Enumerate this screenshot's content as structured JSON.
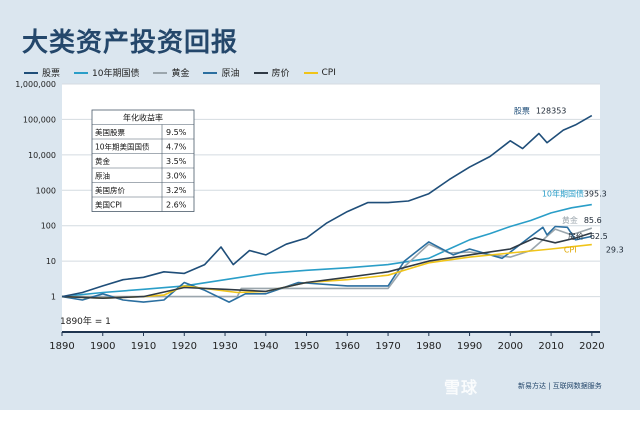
{
  "title": "大类资产投资回报",
  "colors": {
    "band": "#dbe6ef",
    "plot_bg": "#ffffff",
    "text": "#24476b"
  },
  "legend": [
    {
      "name": "股票",
      "color": "#1f4e79"
    },
    {
      "name": "10年期国债",
      "color": "#2a9ec8"
    },
    {
      "name": "黄金",
      "color": "#9ba6ad"
    },
    {
      "name": "原油",
      "color": "#2b6fa0"
    },
    {
      "name": "房价",
      "color": "#2f3a45"
    },
    {
      "name": "CPI",
      "color": "#f0c419"
    }
  ],
  "chart_data": {
    "type": "line",
    "yscale": "log",
    "xlim": [
      1890,
      2022
    ],
    "ylim": [
      0.1,
      1000000
    ],
    "x_ticks": [
      "1890",
      "1900",
      "1910",
      "1920",
      "1930",
      "1940",
      "1950",
      "1960",
      "1970",
      "1980",
      "1990",
      "2000",
      "2010",
      "2020"
    ],
    "y_ticks": [
      "1",
      "10",
      "100",
      "1000",
      "10,000",
      "100,000",
      "1,000,000"
    ],
    "grid": true,
    "legend_position": "top",
    "annotation": "1890年 = 1",
    "series": [
      {
        "name": "股票",
        "color": "#1f4e79",
        "end_label": "128353",
        "points": [
          [
            1890,
            1
          ],
          [
            1895,
            1.3
          ],
          [
            1900,
            2
          ],
          [
            1905,
            3
          ],
          [
            1910,
            3.5
          ],
          [
            1915,
            5
          ],
          [
            1920,
            4.5
          ],
          [
            1925,
            8
          ],
          [
            1929,
            25
          ],
          [
            1932,
            8
          ],
          [
            1936,
            20
          ],
          [
            1940,
            15
          ],
          [
            1945,
            30
          ],
          [
            1950,
            45
          ],
          [
            1955,
            120
          ],
          [
            1960,
            250
          ],
          [
            1965,
            450
          ],
          [
            1970,
            450
          ],
          [
            1975,
            500
          ],
          [
            1980,
            800
          ],
          [
            1985,
            2000
          ],
          [
            1990,
            4500
          ],
          [
            1995,
            9000
          ],
          [
            2000,
            25000
          ],
          [
            2003,
            15000
          ],
          [
            2007,
            40000
          ],
          [
            2009,
            22000
          ],
          [
            2013,
            50000
          ],
          [
            2016,
            70000
          ],
          [
            2020,
            128353
          ]
        ]
      },
      {
        "name": "10年期国债",
        "color": "#2a9ec8",
        "end_label": "395.3",
        "points": [
          [
            1890,
            1
          ],
          [
            1900,
            1.3
          ],
          [
            1910,
            1.6
          ],
          [
            1920,
            2
          ],
          [
            1930,
            3
          ],
          [
            1940,
            4.5
          ],
          [
            1950,
            5.5
          ],
          [
            1960,
            6.5
          ],
          [
            1970,
            8
          ],
          [
            1980,
            12
          ],
          [
            1985,
            22
          ],
          [
            1990,
            40
          ],
          [
            1995,
            60
          ],
          [
            2000,
            95
          ],
          [
            2005,
            140
          ],
          [
            2010,
            230
          ],
          [
            2015,
            320
          ],
          [
            2020,
            395.3
          ]
        ]
      },
      {
        "name": "黄金",
        "color": "#9ba6ad",
        "end_label": "85.6",
        "points": [
          [
            1890,
            1
          ],
          [
            1933,
            1
          ],
          [
            1934,
            1.7
          ],
          [
            1970,
            1.7
          ],
          [
            1974,
            7
          ],
          [
            1980,
            30
          ],
          [
            1985,
            17
          ],
          [
            1990,
            18
          ],
          [
            2000,
            13
          ],
          [
            2005,
            20
          ],
          [
            2011,
            80
          ],
          [
            2015,
            55
          ],
          [
            2020,
            85.6
          ]
        ]
      },
      {
        "name": "原油",
        "color": "#2b6fa0",
        "end_label": "",
        "points": [
          [
            1890,
            1
          ],
          [
            1895,
            0.8
          ],
          [
            1900,
            1.2
          ],
          [
            1905,
            0.8
          ],
          [
            1910,
            0.7
          ],
          [
            1915,
            0.8
          ],
          [
            1920,
            2.5
          ],
          [
            1925,
            1.5
          ],
          [
            1931,
            0.7
          ],
          [
            1935,
            1.2
          ],
          [
            1940,
            1.2
          ],
          [
            1948,
            2.5
          ],
          [
            1960,
            2
          ],
          [
            1970,
            2
          ],
          [
            1974,
            10
          ],
          [
            1980,
            35
          ],
          [
            1986,
            15
          ],
          [
            1990,
            22
          ],
          [
            1998,
            12
          ],
          [
            2005,
            50
          ],
          [
            2008,
            90
          ],
          [
            2009,
            55
          ],
          [
            2011,
            95
          ],
          [
            2014,
            90
          ],
          [
            2016,
            40
          ],
          [
            2020,
            50
          ]
        ]
      },
      {
        "name": "房价",
        "color": "#2f3a45",
        "end_label": "62.5",
        "points": [
          [
            1890,
            1
          ],
          [
            1900,
            0.9
          ],
          [
            1910,
            1
          ],
          [
            1920,
            1.8
          ],
          [
            1930,
            1.6
          ],
          [
            1940,
            1.4
          ],
          [
            1950,
            2.5
          ],
          [
            1960,
            3.5
          ],
          [
            1970,
            5
          ],
          [
            1980,
            10
          ],
          [
            1990,
            15
          ],
          [
            2000,
            22
          ],
          [
            2006,
            45
          ],
          [
            2011,
            33
          ],
          [
            2016,
            45
          ],
          [
            2020,
            62.5
          ]
        ]
      },
      {
        "name": "CPI",
        "color": "#f0c419",
        "end_label": "29.3",
        "points": [
          [
            1890,
            1
          ],
          [
            1900,
            0.9
          ],
          [
            1910,
            1
          ],
          [
            1915,
            1.1
          ],
          [
            1920,
            2
          ],
          [
            1933,
            1.3
          ],
          [
            1940,
            1.4
          ],
          [
            1950,
            2.5
          ],
          [
            1960,
            3
          ],
          [
            1970,
            4
          ],
          [
            1975,
            6
          ],
          [
            1980,
            9
          ],
          [
            1990,
            13
          ],
          [
            2000,
            17
          ],
          [
            2010,
            22
          ],
          [
            2020,
            29.3
          ]
        ]
      }
    ],
    "table": {
      "title": "年化收益率",
      "rows": [
        {
          "label": "美国股票",
          "value": "9.5%"
        },
        {
          "label": "10年期美国国债",
          "value": "4.7%"
        },
        {
          "label": "黄金",
          "value": "3.5%"
        },
        {
          "label": "原油",
          "value": "3.0%"
        },
        {
          "label": "美国房价",
          "value": "3.2%"
        },
        {
          "label": "美国CPI",
          "value": "2.6%"
        }
      ]
    }
  },
  "watermark": "雪球",
  "source": "新易方达 | 互联网数据服务"
}
